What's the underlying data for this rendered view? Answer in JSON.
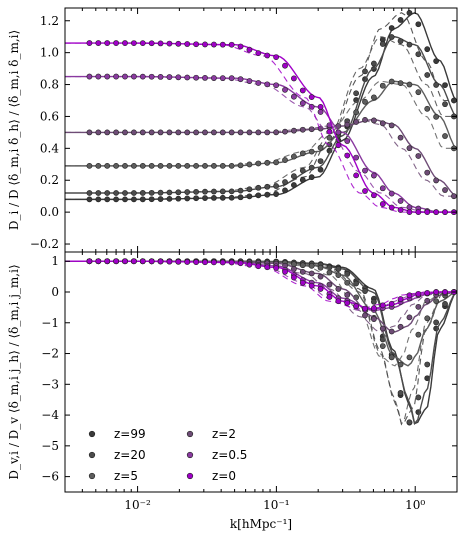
{
  "chart_data": {
    "type": "line",
    "shared_x": {
      "label": "k[hMpc⁻¹]",
      "scale": "log",
      "range": [
        0.003,
        2.0
      ],
      "ticks": [
        0.01,
        0.1,
        1.0
      ],
      "tick_labels": [
        "10⁻²",
        "10⁻¹",
        "10⁰"
      ]
    },
    "legend": {
      "position": "bottom-left (lower panel)",
      "entries": [
        "z=99",
        "z=20",
        "z=5",
        "z=2",
        "z=0.5",
        "z=0"
      ],
      "marker": "dot"
    },
    "series_colors": {
      "z=99": "#3a3a3a",
      "z=20": "#4c4c4c",
      "z=5": "#5d5d5d",
      "z=2": "#6e4c76",
      "z=0.5": "#8a3aa0",
      "z=0": "#a000c8"
    },
    "panels": [
      {
        "name": "top",
        "ylabel": "D_i / D ⟨δ_m,i δ_h⟩ / ⟨δ_m,i δ_m,i⟩",
        "ylim": [
          -0.25,
          1.28
        ],
        "yticks": [
          -0.2,
          0.0,
          0.2,
          0.4,
          0.6,
          0.8,
          1.0,
          1.2
        ],
        "ytick_labels": [
          "−0.2",
          "0.0",
          "0.2",
          "0.4",
          "0.6",
          "0.8",
          "1.0",
          "1.2"
        ],
        "series": [
          {
            "name": "z=99",
            "x": [
              0.004,
              0.01,
              0.05,
              0.1,
              0.2,
              0.3,
              0.5,
              0.7,
              1.0,
              1.5,
              2.0
            ],
            "y": [
              0.08,
              0.08,
              0.09,
              0.11,
              0.22,
              0.45,
              0.85,
              1.15,
              1.25,
              0.95,
              0.7
            ]
          },
          {
            "name": "z=20",
            "x": [
              0.004,
              0.01,
              0.05,
              0.1,
              0.2,
              0.3,
              0.5,
              0.7,
              1.0,
              1.5,
              2.0
            ],
            "y": [
              0.12,
              0.12,
              0.13,
              0.16,
              0.28,
              0.48,
              0.9,
              1.1,
              1.05,
              0.8,
              0.6
            ]
          },
          {
            "name": "z=5",
            "x": [
              0.004,
              0.01,
              0.05,
              0.1,
              0.2,
              0.3,
              0.5,
              0.7,
              1.0,
              1.5,
              2.0
            ],
            "y": [
              0.29,
              0.29,
              0.29,
              0.31,
              0.38,
              0.5,
              0.7,
              0.82,
              0.8,
              0.6,
              0.4
            ]
          },
          {
            "name": "z=2",
            "x": [
              0.004,
              0.01,
              0.05,
              0.1,
              0.2,
              0.3,
              0.5,
              0.7,
              1.0,
              1.5,
              2.0
            ],
            "y": [
              0.5,
              0.5,
              0.5,
              0.5,
              0.52,
              0.54,
              0.58,
              0.55,
              0.4,
              0.2,
              0.1
            ]
          },
          {
            "name": "z=0.5",
            "x": [
              0.004,
              0.01,
              0.05,
              0.1,
              0.2,
              0.3,
              0.5,
              0.7,
              1.0,
              1.5,
              2.0
            ],
            "y": [
              0.85,
              0.85,
              0.84,
              0.8,
              0.66,
              0.5,
              0.25,
              0.12,
              0.03,
              0.0,
              0.0
            ]
          },
          {
            "name": "z=0",
            "x": [
              0.004,
              0.01,
              0.05,
              0.1,
              0.2,
              0.3,
              0.5,
              0.7,
              1.0,
              1.5,
              2.0
            ],
            "y": [
              1.06,
              1.06,
              1.05,
              0.98,
              0.72,
              0.42,
              0.12,
              0.03,
              0.0,
              0.0,
              0.0
            ]
          }
        ]
      },
      {
        "name": "bottom",
        "ylabel": "D_v,i / D_v ⟨δ_m,i j_h⟩ / ⟨δ_m,i j_m,i⟩",
        "ylim": [
          -6.5,
          1.3
        ],
        "yticks": [
          -6,
          -5,
          -4,
          -3,
          -2,
          -1,
          0,
          1
        ],
        "ytick_labels": [
          "−6",
          "−5",
          "−4",
          "−3",
          "−2",
          "−1",
          "0",
          "1"
        ],
        "series": [
          {
            "name": "z=99",
            "x": [
              0.004,
              0.01,
              0.05,
              0.1,
              0.2,
              0.3,
              0.5,
              0.7,
              0.9,
              1.0,
              1.2,
              1.5,
              2.0
            ],
            "y": [
              1.0,
              1.0,
              1.0,
              0.99,
              0.93,
              0.8,
              0.1,
              -1.9,
              -3.6,
              -4.3,
              -3.8,
              -1.2,
              0.0
            ]
          },
          {
            "name": "z=20",
            "x": [
              0.004,
              0.01,
              0.05,
              0.1,
              0.2,
              0.3,
              0.5,
              0.7,
              0.9,
              1.0,
              1.2,
              1.5,
              2.0
            ],
            "y": [
              1.0,
              1.0,
              1.0,
              0.99,
              0.92,
              0.75,
              0.0,
              -2.0,
              -3.5,
              -4.3,
              -3.2,
              -1.0,
              0.0
            ]
          },
          {
            "name": "z=5",
            "x": [
              0.004,
              0.01,
              0.05,
              0.1,
              0.2,
              0.3,
              0.5,
              0.7,
              0.9,
              1.0,
              1.2,
              1.5,
              2.0
            ],
            "y": [
              1.0,
              1.0,
              1.0,
              0.97,
              0.85,
              0.55,
              -0.6,
              -2.1,
              -2.4,
              -2.1,
              -1.2,
              -0.3,
              0.0
            ]
          },
          {
            "name": "z=2",
            "x": [
              0.004,
              0.01,
              0.05,
              0.1,
              0.2,
              0.3,
              0.5,
              0.7,
              0.9,
              1.0,
              1.2,
              1.5,
              2.0
            ],
            "y": [
              1.0,
              1.0,
              0.99,
              0.93,
              0.6,
              0.1,
              -0.8,
              -1.3,
              -1.1,
              -0.8,
              -0.4,
              -0.1,
              0.0
            ]
          },
          {
            "name": "z=0.5",
            "x": [
              0.004,
              0.01,
              0.05,
              0.1,
              0.2,
              0.3,
              0.5,
              0.7,
              0.9,
              1.0,
              1.2,
              1.5,
              2.0
            ],
            "y": [
              1.0,
              1.0,
              0.97,
              0.85,
              0.3,
              -0.2,
              -0.6,
              -0.5,
              -0.3,
              -0.2,
              -0.08,
              0.0,
              0.0
            ]
          },
          {
            "name": "z=0",
            "x": [
              0.004,
              0.01,
              0.05,
              0.1,
              0.2,
              0.3,
              0.5,
              0.7,
              0.9,
              1.0,
              1.2,
              1.5,
              2.0
            ],
            "y": [
              1.0,
              1.0,
              0.96,
              0.8,
              0.2,
              -0.3,
              -0.55,
              -0.4,
              -0.2,
              -0.1,
              -0.05,
              0.0,
              0.0
            ]
          }
        ]
      }
    ]
  }
}
